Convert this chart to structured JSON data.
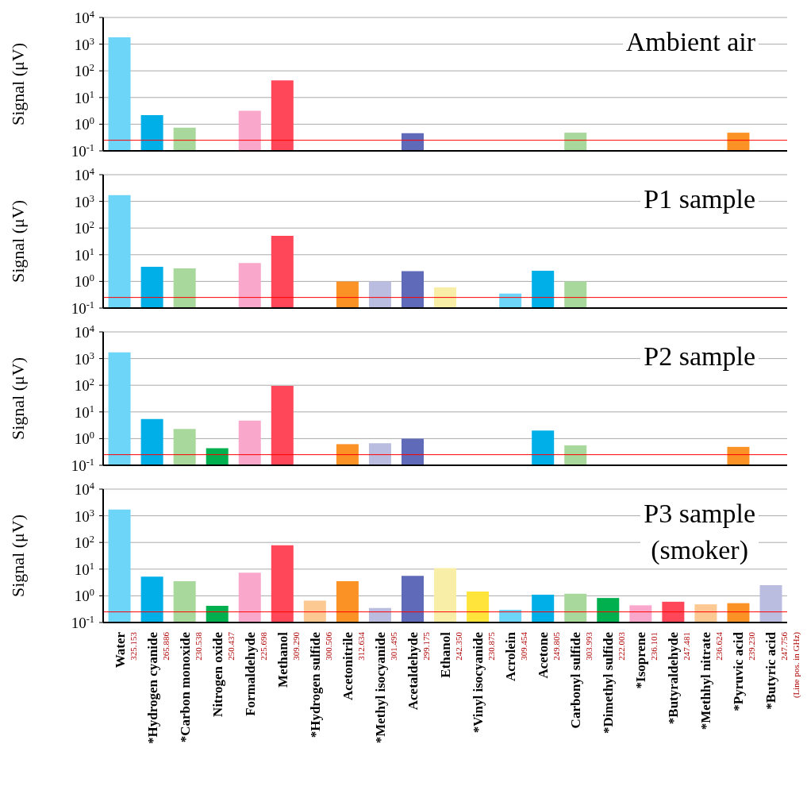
{
  "chart_data": [
    {
      "type": "bar",
      "title": "Ambient air",
      "ylabel": "Signal (μV)",
      "log": true,
      "grid": "y",
      "tick_labels": "y",
      "categories": [
        null,
        null,
        null,
        null,
        null,
        null,
        null,
        null,
        null,
        null,
        null,
        null,
        null,
        null,
        null,
        null,
        null,
        null,
        null,
        null,
        null
      ],
      "values": [
        1800,
        2.2,
        0.74,
        null,
        3.2,
        44,
        null,
        null,
        null,
        0.46,
        null,
        null,
        null,
        null,
        0.48,
        null,
        null,
        null,
        null,
        0.48,
        null
      ],
      "colors": [
        "#6dd5f8",
        "#00aee8",
        "#a8d89b",
        "#00b04f",
        "#f9a8cb",
        "#ff4759",
        "#fdc992",
        "#fb9226",
        "#bbbde0",
        "#5f6bb8",
        "#f9eea8",
        "#ffe53b",
        "#6dd5f8",
        "#00aee8",
        "#a8d89b",
        "#00b04f",
        "#f9a8cb",
        "#ff4759",
        "#fdc992",
        "#fb9226",
        "#bbbde0"
      ],
      "ylim": [
        0.1,
        10000
      ],
      "yticks": [
        {
          "value": 0.1,
          "label": "10$^{-1}$"
        },
        {
          "value": 1,
          "label": "10$^{0}$"
        },
        {
          "value": 10,
          "label": "10$^{1}$"
        },
        {
          "value": 100,
          "label": "10$^{2}$"
        },
        {
          "value": 1000,
          "label": "10$^{3}$"
        },
        {
          "value": 10000,
          "label": "10$^{4}$"
        }
      ],
      "ref_lines": [
        {
          "axis": "y",
          "value": 0.25,
          "color": "#ff0000"
        }
      ]
    },
    {
      "type": "bar",
      "title": "P1 sample",
      "ylabel": "Signal (μV)",
      "log": true,
      "grid": "y",
      "tick_labels": "y",
      "categories": [
        null,
        null,
        null,
        null,
        null,
        null,
        null,
        null,
        null,
        null,
        null,
        null,
        null,
        null,
        null,
        null,
        null,
        null,
        null,
        null,
        null
      ],
      "values": [
        1700,
        3.5,
        3.1,
        null,
        4.9,
        51,
        null,
        1.0,
        1.0,
        2.4,
        0.6,
        null,
        0.35,
        2.5,
        1.0,
        null,
        null,
        null,
        null,
        null,
        null
      ],
      "colors": [
        "#6dd5f8",
        "#00aee8",
        "#a8d89b",
        "#00b04f",
        "#f9a8cb",
        "#ff4759",
        "#fdc992",
        "#fb9226",
        "#bbbde0",
        "#5f6bb8",
        "#f9eea8",
        "#ffe53b",
        "#6dd5f8",
        "#00aee8",
        "#a8d89b",
        "#00b04f",
        "#f9a8cb",
        "#ff4759",
        "#fdc992",
        "#fb9226",
        "#bbbde0"
      ],
      "ylim": [
        0.1,
        10000
      ],
      "yticks": [
        {
          "value": 0.1,
          "label": "10$^{-1}$"
        },
        {
          "value": 1,
          "label": "10$^{0}$"
        },
        {
          "value": 10,
          "label": "10$^{1}$"
        },
        {
          "value": 100,
          "label": "10$^{2}$"
        },
        {
          "value": 1000,
          "label": "10$^{3}$"
        },
        {
          "value": 10000,
          "label": "10$^{4}$"
        }
      ],
      "ref_lines": [
        {
          "axis": "y",
          "value": 0.25,
          "color": "#ff0000"
        }
      ]
    },
    {
      "type": "bar",
      "title": "P2 sample",
      "ylabel": "Signal (μV)",
      "log": true,
      "grid": "y",
      "tick_labels": "y",
      "categories": [
        null,
        null,
        null,
        null,
        null,
        null,
        null,
        null,
        null,
        null,
        null,
        null,
        null,
        null,
        null,
        null,
        null,
        null,
        null,
        null,
        null
      ],
      "values": [
        1700,
        5.4,
        2.3,
        0.44,
        4.7,
        95,
        null,
        0.62,
        0.67,
        1.0,
        null,
        null,
        null,
        2.0,
        0.56,
        null,
        null,
        null,
        null,
        0.49,
        null
      ],
      "colors": [
        "#6dd5f8",
        "#00aee8",
        "#a8d89b",
        "#00b04f",
        "#f9a8cb",
        "#ff4759",
        "#fdc992",
        "#fb9226",
        "#bbbde0",
        "#5f6bb8",
        "#f9eea8",
        "#ffe53b",
        "#6dd5f8",
        "#00aee8",
        "#a8d89b",
        "#00b04f",
        "#f9a8cb",
        "#ff4759",
        "#fdc992",
        "#fb9226",
        "#bbbde0"
      ],
      "ylim": [
        0.1,
        10000
      ],
      "yticks": [
        {
          "value": 0.1,
          "label": "10$^{-1}$"
        },
        {
          "value": 1,
          "label": "10$^{0}$"
        },
        {
          "value": 10,
          "label": "10$^{1}$"
        },
        {
          "value": 100,
          "label": "10$^{2}$"
        },
        {
          "value": 1000,
          "label": "10$^{3}$"
        },
        {
          "value": 10000,
          "label": "10$^{4}$"
        }
      ],
      "ref_lines": [
        {
          "axis": "y",
          "value": 0.25,
          "color": "#ff0000"
        }
      ]
    },
    {
      "type": "bar",
      "title": "P3 sample\n(smoker)",
      "ylabel": "Signal (μV)",
      "log": true,
      "grid": "y",
      "categories": [
        "Water",
        "*Hydrogen cyanide",
        "*Carbon monoxide",
        "Nitrogen oxide",
        "Formaldehyde",
        "Methanol",
        "*Hydrogen sulfide",
        "Acetonitrile",
        "*Methyl isocyanide",
        "Acetaldehyde",
        "Ethanol",
        "*Vinyl isocyanide",
        "Acrolein",
        "Acetone",
        "Carbonyl sulfide",
        "*Dimethyl sulfide",
        "*Isoprene",
        "*Butyraldehyde",
        "*Methhyl nitrate",
        "*Pyruvic acid",
        "*Butyric acid"
      ],
      "values": [
        1700,
        5.2,
        3.5,
        0.42,
        7.4,
        78,
        0.66,
        3.5,
        0.35,
        5.6,
        11,
        1.45,
        0.3,
        1.1,
        1.2,
        0.83,
        0.44,
        0.6,
        0.48,
        0.53,
        2.5
      ],
      "colors": [
        "#6dd5f8",
        "#00aee8",
        "#a8d89b",
        "#00b04f",
        "#f9a8cb",
        "#ff4759",
        "#fdc992",
        "#fb9226",
        "#bbbde0",
        "#5f6bb8",
        "#f9eea8",
        "#ffe53b",
        "#6dd5f8",
        "#00aee8",
        "#a8d89b",
        "#00b04f",
        "#f9a8cb",
        "#ff4759",
        "#fdc992",
        "#fb9226",
        "#bbbde0"
      ],
      "ylim": [
        0.1,
        10000
      ],
      "yticks": [
        {
          "value": 0.1,
          "label": "10$^{-1}$"
        },
        {
          "value": 1,
          "label": "10$^{0}$"
        },
        {
          "value": 10,
          "label": "10$^{1}$"
        },
        {
          "value": 100,
          "label": "10$^{2}$"
        },
        {
          "value": 1000,
          "label": "10$^{3}$"
        },
        {
          "value": 10000,
          "label": "10$^{4}$"
        }
      ],
      "ref_lines": [
        {
          "axis": "y",
          "value": 0.25,
          "color": "#ff0000"
        }
      ],
      "annotations": [
        "325.153",
        "265.886",
        "230.538",
        "250.437",
        "225.698",
        "309.290",
        "300.506",
        "312.634",
        "301.495",
        "299.175",
        "242.350",
        "230.875",
        "309.454",
        "249.805",
        "303.993",
        "222.003",
        "236.101",
        "247.481",
        "236.624",
        "239.230",
        "247.756",
        "(Line pos. in GHz)"
      ]
    }
  ]
}
